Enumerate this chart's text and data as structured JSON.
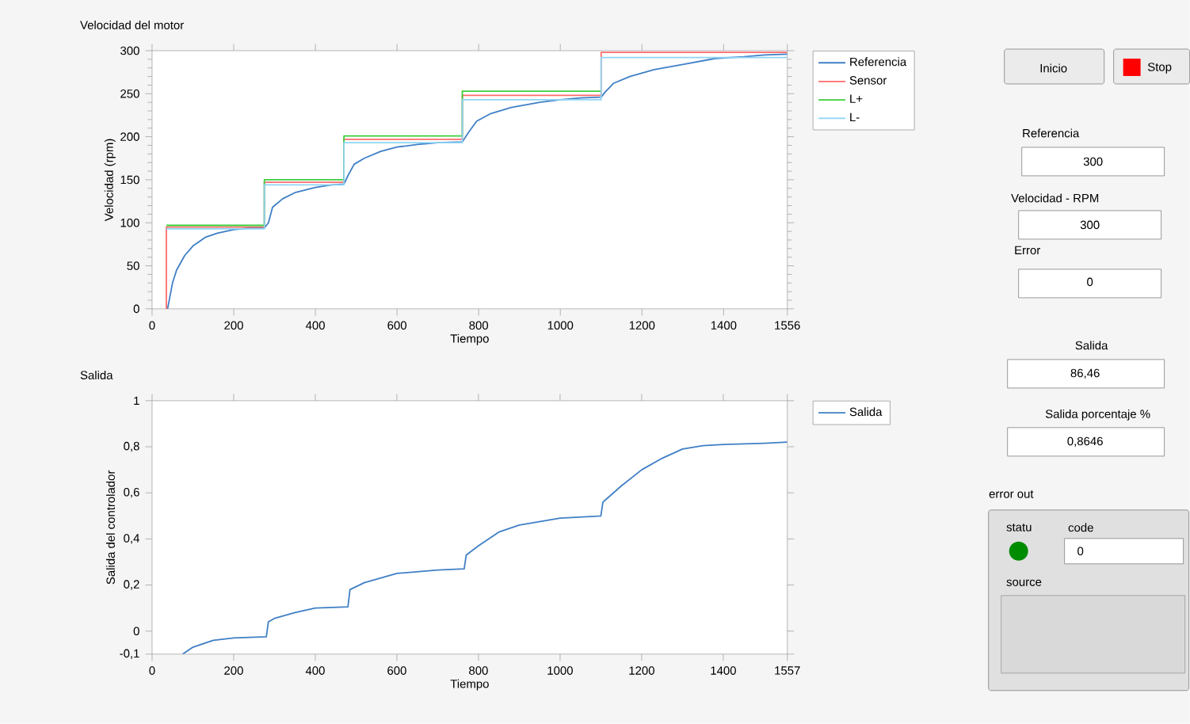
{
  "chart_data": [
    {
      "type": "line",
      "title": "Velocidad del motor",
      "xlabel": "Tiempo",
      "ylabel": "Velocidad (rpm)",
      "xlim": [
        0,
        1556
      ],
      "ylim": [
        0,
        300
      ],
      "xticks": [
        0,
        200,
        400,
        600,
        800,
        1000,
        1200,
        1400,
        1556
      ],
      "yticks": [
        0,
        50,
        100,
        150,
        200,
        250,
        300
      ],
      "legend": "right",
      "series": [
        {
          "name": "Referencia",
          "color": "#3f7fc6",
          "x": [
            38,
            50,
            60,
            80,
            100,
            130,
            160,
            200,
            240,
            275,
            285,
            295,
            320,
            350,
            400,
            440,
            470,
            480,
            495,
            520,
            560,
            600,
            650,
            700,
            760,
            775,
            795,
            830,
            880,
            950,
            1000,
            1050,
            1100,
            1110,
            1130,
            1170,
            1230,
            1300,
            1380,
            1450,
            1500,
            1556
          ],
          "values": [
            0,
            30,
            45,
            62,
            73,
            83,
            88,
            92,
            94,
            94,
            100,
            118,
            128,
            135,
            141,
            144,
            145,
            155,
            168,
            175,
            183,
            188,
            191,
            193,
            194,
            205,
            218,
            227,
            234,
            240,
            243,
            245,
            246,
            252,
            262,
            270,
            278,
            284,
            291,
            293,
            295,
            296
          ]
        },
        {
          "name": "Sensor",
          "color": "#ff6b6b",
          "x": [
            35,
            35,
            275,
            275,
            470,
            470,
            760,
            760,
            1100,
            1100,
            1556
          ],
          "values": [
            0,
            95,
            95,
            147,
            147,
            197,
            197,
            248,
            248,
            298,
            298
          ]
        },
        {
          "name": "L+",
          "color": "#3ccf3c",
          "x": [
            35,
            275,
            275,
            470,
            470,
            760,
            760,
            1100
          ],
          "values": [
            97,
            97,
            150,
            150,
            201,
            201,
            253,
            253
          ]
        },
        {
          "name": "L-",
          "color": "#8fd4f5",
          "x": [
            35,
            275,
            275,
            470,
            470,
            760,
            760,
            1100,
            1100,
            1556
          ],
          "values": [
            93,
            93,
            144,
            144,
            193,
            193,
            243,
            243,
            292,
            292
          ]
        }
      ]
    },
    {
      "type": "line",
      "title": "Salida",
      "xlabel": "Tiempo",
      "ylabel": "Salida del controlador",
      "xlim": [
        0,
        1557
      ],
      "ylim": [
        -0.1,
        1
      ],
      "xticks": [
        0,
        200,
        400,
        600,
        800,
        1000,
        1200,
        1400,
        1557
      ],
      "yticks": [
        {
          "value": -0.1,
          "label": "-0,1"
        },
        0,
        {
          "value": 0.2,
          "label": "0,2"
        },
        {
          "value": 0.4,
          "label": "0,4"
        },
        {
          "value": 0.6,
          "label": "0,6"
        },
        {
          "value": 0.8,
          "label": "0,8"
        },
        1
      ],
      "legend": "right",
      "series": [
        {
          "name": "Salida",
          "color": "#3f7fc6",
          "x": [
            75,
            100,
            150,
            200,
            280,
            285,
            300,
            350,
            400,
            480,
            485,
            520,
            600,
            700,
            765,
            770,
            800,
            850,
            900,
            1000,
            1100,
            1105,
            1150,
            1200,
            1250,
            1300,
            1350,
            1400,
            1500,
            1557
          ],
          "values": [
            -0.1,
            -0.07,
            -0.04,
            -0.03,
            -0.025,
            0.04,
            0.055,
            0.08,
            0.1,
            0.105,
            0.18,
            0.21,
            0.25,
            0.265,
            0.27,
            0.33,
            0.37,
            0.43,
            0.46,
            0.49,
            0.5,
            0.56,
            0.63,
            0.7,
            0.75,
            0.79,
            0.805,
            0.81,
            0.815,
            0.82
          ]
        }
      ]
    },
    {
      "type": "other",
      "annotations": [
        "Inicio",
        "Stop",
        "Referencia",
        "300",
        "Velocidad - RPM",
        "300",
        "Error",
        "0",
        "Salida",
        "86,46",
        "Salida porcentaje %",
        "0,8646",
        "error out",
        "statu",
        "code",
        "0",
        "source"
      ]
    }
  ]
}
